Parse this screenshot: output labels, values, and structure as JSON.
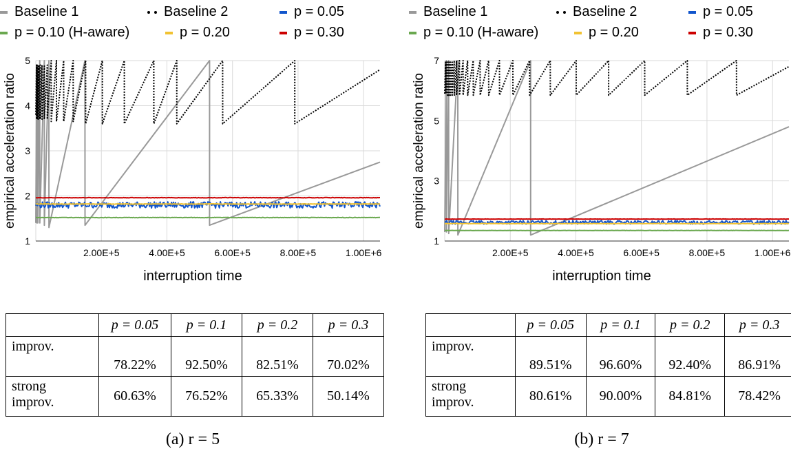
{
  "panels": [
    {
      "id": "a",
      "legend": [
        {
          "label": "Baseline 1",
          "color": "#999999",
          "style": "solid"
        },
        {
          "label": "Baseline 2",
          "color": "#000000",
          "style": "dotted"
        },
        {
          "label": "p = 0.05",
          "color": "#1155cc",
          "style": "solid"
        },
        {
          "label": "p = 0.10 (H-aware)",
          "color": "#6aa84f",
          "style": "solid"
        },
        {
          "label": "p = 0.20",
          "color": "#f1c232",
          "style": "solid"
        },
        {
          "label": "p = 0.30",
          "color": "#cc0000",
          "style": "solid"
        }
      ],
      "chart_data": {
        "type": "line",
        "xlabel": "interruption time",
        "ylabel": "empirical acceleration ratio",
        "xlim": [
          0,
          1050000
        ],
        "ylim": [
          1,
          5
        ],
        "xticks": [
          200000,
          400000,
          600000,
          800000,
          1000000
        ],
        "xtick_labels": [
          "2.00E+5",
          "4.00E+5",
          "6.00E+5",
          "8.00E+5",
          "1.00E+6"
        ],
        "yticks": [
          1,
          2,
          3,
          4,
          5
        ],
        "ytick_labels": [
          "1",
          "2",
          "3",
          "4",
          "5"
        ],
        "grid": true,
        "legend_position": "top",
        "series": [
          {
            "name": "Baseline 1",
            "x": [
              0,
              3000,
              3100,
              6000,
              6100,
              12000,
              12100,
              26000,
              26100,
              40000,
              40100,
              150000,
              150100,
              530000,
              530100,
              1050000
            ],
            "y": [
              1.4,
              4.9,
              1.4,
              4.8,
              1.4,
              5.0,
              1.4,
              5.0,
              1.35,
              5.0,
              1.3,
              5.0,
              1.35,
              5.0,
              1.35,
              2.75
            ]
          },
          {
            "name": "Baseline 2",
            "x": [
              0,
              2000,
              2100,
              4000,
              4100,
              7000,
              7100,
              10000,
              10100,
              14000,
              14100,
              19000,
              19100,
              26000,
              26100,
              35000,
              35100,
              47000,
              47100,
              63000,
              63100,
              85000,
              85100,
              114000,
              114100,
              152000,
              152100,
              203000,
              203100,
              270000,
              270100,
              360000,
              360100,
              430000,
              430100,
              570000,
              570100,
              790000,
              790100,
              1050000
            ],
            "y": [
              3.8,
              4.9,
              3.7,
              4.9,
              3.7,
              4.9,
              3.7,
              4.9,
              3.7,
              4.9,
              3.7,
              4.9,
              3.7,
              4.9,
              3.7,
              4.9,
              3.7,
              5.0,
              3.65,
              5.0,
              3.65,
              5.0,
              3.65,
              5.0,
              3.65,
              5.0,
              3.6,
              5.0,
              3.6,
              5.0,
              3.6,
              5.0,
              3.6,
              5.0,
              3.6,
              5.0,
              3.6,
              5.0,
              3.6,
              4.8
            ]
          },
          {
            "name": "p = 0.05",
            "level": 1.8,
            "noise": 0.07
          },
          {
            "name": "p = 0.10 (H-aware)",
            "level": 1.52,
            "noise": 0.005
          },
          {
            "name": "p = 0.20",
            "level": 1.82,
            "noise": 0.005
          },
          {
            "name": "p = 0.30",
            "level": 1.96,
            "noise": 0.005
          }
        ]
      },
      "table": {
        "header": [
          "",
          "p = 0.05",
          "p = 0.1",
          "p = 0.2",
          "p = 0.3"
        ],
        "rows": [
          {
            "label_lines": [
              "improv."
            ],
            "values": [
              "78.22%",
              "92.50%",
              "82.51%",
              "70.02%"
            ]
          },
          {
            "label_lines": [
              "strong",
              "improv."
            ],
            "values": [
              "60.63%",
              "76.52%",
              "65.33%",
              "50.14%"
            ]
          }
        ]
      },
      "caption": "(a) r = 5"
    },
    {
      "id": "b",
      "legend": [
        {
          "label": "Baseline 1",
          "color": "#999999",
          "style": "solid"
        },
        {
          "label": "Baseline 2",
          "color": "#000000",
          "style": "dotted"
        },
        {
          "label": "p = 0.05",
          "color": "#1155cc",
          "style": "solid"
        },
        {
          "label": "p = 0.10 (H-aware)",
          "color": "#6aa84f",
          "style": "solid"
        },
        {
          "label": "p = 0.20",
          "color": "#f1c232",
          "style": "solid"
        },
        {
          "label": "p = 0.30",
          "color": "#cc0000",
          "style": "solid"
        }
      ],
      "chart_data": {
        "type": "line",
        "xlabel": "interruption time",
        "ylabel": "empirical acceleration ratio",
        "xlim": [
          0,
          1050000
        ],
        "ylim": [
          1,
          7
        ],
        "xticks": [
          200000,
          400000,
          600000,
          800000,
          1000000
        ],
        "xtick_labels": [
          "2.00E+5",
          "4.00E+5",
          "6.00E+5",
          "8.00E+5",
          "1.00E+6"
        ],
        "yticks": [
          1,
          3,
          5,
          7
        ],
        "ytick_labels": [
          "1",
          "3",
          "5",
          "7"
        ],
        "grid": true,
        "legend_position": "top",
        "series": [
          {
            "name": "Baseline 1",
            "x": [
              0,
              5000,
              5100,
              12000,
              12100,
              40000,
              40100,
              262000,
              262100,
              1050000
            ],
            "y": [
              1.3,
              7.0,
              1.3,
              7.0,
              1.25,
              7.0,
              1.2,
              7.0,
              1.2,
              4.8
            ]
          },
          {
            "name": "Baseline 2",
            "x": [
              0,
              2500,
              2600,
              5000,
              5100,
              8000,
              8100,
              11000,
              11100,
              14000,
              14100,
              18000,
              18100,
              23000,
              23100,
              29000,
              29100,
              36000,
              36100,
              45000,
              45100,
              56000,
              56100,
              70000,
              70100,
              87000,
              87100,
              108000,
              108100,
              134000,
              134100,
              167000,
              167100,
              208000,
              208100,
              259000,
              259100,
              322000,
              322100,
              401000,
              401100,
              500000,
              500100,
              610000,
              610100,
              740000,
              740100,
              890000,
              890100,
              1050000
            ],
            "y": [
              5.9,
              6.95,
              5.9,
              6.95,
              5.9,
              6.95,
              5.85,
              6.95,
              5.85,
              6.95,
              5.85,
              6.95,
              5.85,
              6.95,
              5.85,
              7.0,
              5.85,
              7.0,
              5.85,
              7.0,
              5.85,
              7.0,
              5.85,
              7.0,
              5.85,
              7.0,
              5.85,
              7.0,
              5.85,
              7.0,
              5.85,
              7.0,
              5.85,
              7.0,
              5.85,
              7.0,
              5.85,
              7.0,
              5.85,
              7.0,
              5.85,
              7.0,
              5.85,
              7.0,
              5.85,
              7.0,
              5.85,
              7.0,
              5.85,
              6.8
            ]
          },
          {
            "name": "p = 0.05",
            "level": 1.62,
            "noise": 0.06
          },
          {
            "name": "p = 0.10 (H-aware)",
            "level": 1.35,
            "noise": 0.005
          },
          {
            "name": "p = 0.20",
            "level": 1.58,
            "noise": 0.005
          },
          {
            "name": "p = 0.30",
            "level": 1.73,
            "noise": 0.005
          }
        ]
      },
      "table": {
        "header": [
          "",
          "p = 0.05",
          "p = 0.1",
          "p = 0.2",
          "p = 0.3"
        ],
        "rows": [
          {
            "label_lines": [
              "improv."
            ],
            "values": [
              "89.51%",
              "96.60%",
              "92.40%",
              "86.91%"
            ]
          },
          {
            "label_lines": [
              "strong",
              "improv."
            ],
            "values": [
              "80.61%",
              "90.00%",
              "84.81%",
              "78.42%"
            ]
          }
        ]
      },
      "caption": "(b) r = 7"
    }
  ]
}
